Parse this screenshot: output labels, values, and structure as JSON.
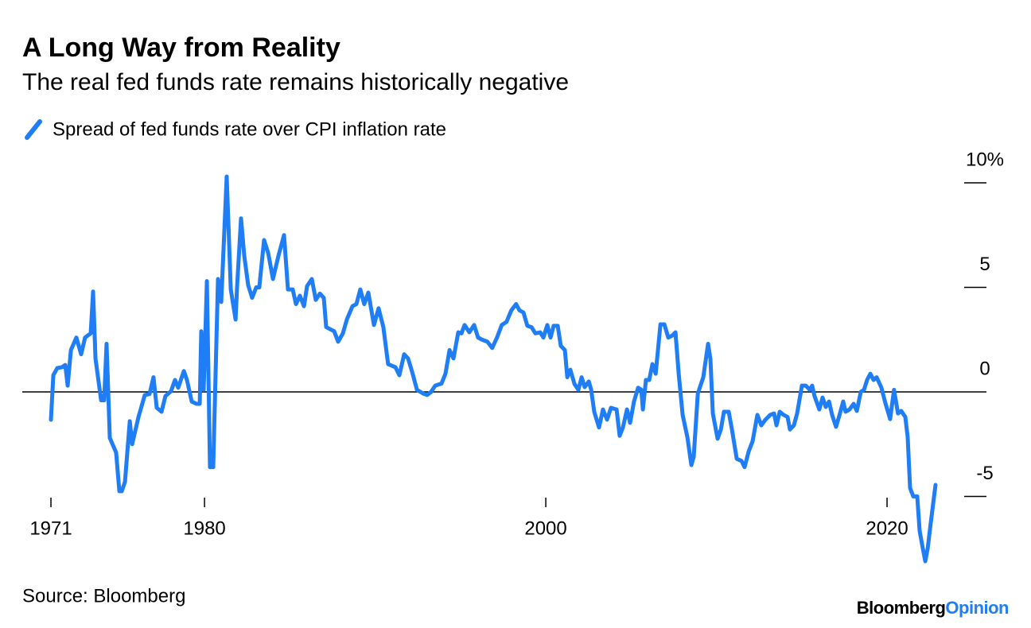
{
  "chart_data": {
    "type": "line",
    "title": "A Long Way from Reality",
    "subtitle": "The real fed funds rate remains historically negative",
    "source": "Source: Bloomberg",
    "logo": {
      "brand": "Bloomberg",
      "product": "Opinion"
    },
    "xlim": [
      1969.32,
      2024.52
    ],
    "xticks": [
      1971,
      1980,
      2000,
      2020
    ],
    "ylim": [
      -8.5,
      10.5
    ],
    "yticks": [
      {
        "value": 10,
        "label": "10%"
      },
      5,
      0,
      -5
    ],
    "grid": false,
    "x": [
      1971.0,
      1971.14,
      1971.37,
      1971.65,
      1971.84,
      1971.98,
      1972.17,
      1972.49,
      1972.77,
      1973.0,
      1973.33,
      1973.47,
      1973.61,
      1973.94,
      1974.12,
      1974.26,
      1974.45,
      1974.82,
      1975.01,
      1975.15,
      1975.34,
      1975.62,
      1975.76,
      1976.13,
      1976.5,
      1976.78,
      1977.01,
      1977.2,
      1977.48,
      1977.71,
      1978.04,
      1978.27,
      1978.46,
      1978.79,
      1978.97,
      1979.25,
      1979.53,
      1979.72,
      1979.81,
      1979.95,
      1980.14,
      1980.32,
      1980.51,
      1980.79,
      1980.98,
      1981.3,
      1981.54,
      1981.82,
      1981.91,
      1982.14,
      1982.33,
      1982.56,
      1982.79,
      1983.03,
      1983.21,
      1983.49,
      1983.73,
      1984.01,
      1984.33,
      1984.66,
      1984.89,
      1985.17,
      1985.36,
      1985.59,
      1985.83,
      1986.01,
      1986.29,
      1986.52,
      1986.76,
      1986.99,
      1987.13,
      1987.6,
      1987.83,
      1988.11,
      1988.34,
      1988.67,
      1988.9,
      1989.13,
      1989.36,
      1989.6,
      1989.93,
      1990.2,
      1990.48,
      1990.76,
      1991.19,
      1991.42,
      1991.7,
      1991.93,
      1992.17,
      1992.45,
      1992.82,
      1993.05,
      1993.28,
      1993.52,
      1993.89,
      1994.12,
      1994.36,
      1994.59,
      1994.87,
      1995.06,
      1995.24,
      1995.52,
      1995.8,
      1996.03,
      1996.26,
      1996.58,
      1996.86,
      1997.14,
      1997.42,
      1997.7,
      1997.98,
      1998.26,
      1998.46,
      1998.69,
      1998.92,
      1999.16,
      1999.39,
      1999.67,
      1999.86,
      2000.09,
      2000.28,
      2000.46,
      2000.7,
      2000.88,
      2001.12,
      2001.26,
      2001.44,
      2001.68,
      2001.91,
      2002.1,
      2002.28,
      2002.52,
      2002.66,
      2002.84,
      2003.12,
      2003.35,
      2003.59,
      2003.82,
      2004.15,
      2004.33,
      2004.52,
      2004.76,
      2004.94,
      2005.17,
      2005.41,
      2005.6,
      2005.69,
      2005.87,
      2006.06,
      2006.25,
      2006.44,
      2006.72,
      2006.95,
      2007.18,
      2007.42,
      2007.6,
      2007.79,
      2008.02,
      2008.3,
      2008.53,
      2008.67,
      2008.91,
      2009.23,
      2009.51,
      2009.65,
      2009.79,
      2010.07,
      2010.26,
      2010.44,
      2010.72,
      2010.91,
      2011.19,
      2011.47,
      2011.65,
      2011.89,
      2012.12,
      2012.4,
      2012.63,
      2012.87,
      2013.15,
      2013.38,
      2013.52,
      2013.71,
      2013.94,
      2014.17,
      2014.31,
      2014.54,
      2014.73,
      2015.01,
      2015.24,
      2015.47,
      2015.61,
      2015.75,
      2016.03,
      2016.22,
      2016.41,
      2016.6,
      2016.78,
      2017.01,
      2017.24,
      2017.43,
      2017.57,
      2017.8,
      2018.04,
      2018.23,
      2018.46,
      2018.65,
      2018.83,
      2019.02,
      2019.21,
      2019.39,
      2019.67,
      2019.9,
      2020.18,
      2020.41,
      2020.64,
      2020.83,
      2021.07,
      2021.21,
      2021.35,
      2021.54,
      2021.77,
      2021.91,
      2022.1,
      2022.24,
      2022.38,
      2022.56,
      2022.84
    ],
    "series": [
      {
        "name": "Spread of fed funds rate over CPI inflation rate",
        "color": "#1f7ef5",
        "values": [
          -1.33,
          0.8,
          1.14,
          1.18,
          1.29,
          0.3,
          2.0,
          2.6,
          1.8,
          2.6,
          2.8,
          4.8,
          1.6,
          -0.4,
          -0.4,
          2.3,
          -2.2,
          -2.9,
          -4.75,
          -4.75,
          -4.3,
          -1.4,
          -2.5,
          -1.2,
          -0.15,
          -0.1,
          0.7,
          -0.76,
          -0.95,
          -0.2,
          0.04,
          0.57,
          0.2,
          1.0,
          0.57,
          -0.46,
          -0.57,
          -0.57,
          2.9,
          0.1,
          5.3,
          -3.6,
          -3.6,
          5.4,
          4.3,
          10.3,
          4.9,
          3.46,
          5.05,
          8.3,
          6.5,
          5.1,
          4.5,
          5.0,
          5.0,
          7.26,
          6.65,
          5.4,
          6.5,
          7.5,
          4.9,
          4.9,
          4.2,
          4.6,
          4.1,
          5.06,
          5.4,
          4.4,
          4.7,
          4.5,
          3.1,
          2.9,
          2.4,
          2.8,
          3.46,
          4.1,
          4.2,
          4.9,
          4.2,
          4.75,
          3.2,
          4.0,
          3.1,
          1.33,
          1.18,
          0.8,
          1.8,
          1.6,
          0.95,
          0.1,
          -0.08,
          -0.15,
          0,
          0.3,
          0.4,
          0.87,
          2.0,
          1.6,
          2.85,
          2.8,
          3.2,
          2.85,
          3.2,
          2.6,
          2.5,
          2.4,
          2.1,
          2.6,
          3.2,
          3.35,
          3.9,
          4.2,
          3.9,
          3.8,
          3.16,
          3.1,
          2.8,
          2.85,
          2.6,
          3.2,
          2.6,
          3.16,
          3.16,
          2.2,
          2.0,
          0.7,
          1.06,
          0.38,
          0.1,
          0.7,
          0.23,
          0.5,
          0.1,
          -0.95,
          -1.7,
          -0.84,
          -1.33,
          -0.76,
          -0.84,
          -2.1,
          -1.7,
          -0.84,
          -1.48,
          -0.46,
          0.2,
          0.1,
          -0.84,
          0.57,
          0.57,
          1.33,
          0.87,
          3.23,
          3.23,
          2.6,
          2.7,
          2.85,
          0.87,
          -1.1,
          -2.17,
          -3.5,
          -3.1,
          -0.08,
          0.7,
          2.3,
          1.56,
          -1.03,
          -2.24,
          -1.8,
          -0.95,
          -0.95,
          -1.8,
          -3.2,
          -3.3,
          -3.6,
          -2.85,
          -2.36,
          -1.1,
          -1.6,
          -1.33,
          -1.1,
          -1.03,
          -1.6,
          -0.95,
          -1.1,
          -1.2,
          -1.8,
          -1.6,
          -1.03,
          0.3,
          0.3,
          0.1,
          0.3,
          -0.2,
          -0.84,
          -0.27,
          -0.72,
          -0.46,
          -1.1,
          -1.67,
          -1.03,
          -0.46,
          -0.95,
          -0.84,
          -0.57,
          -0.91,
          0,
          0.1,
          0.57,
          0.87,
          0.57,
          0.7,
          0.2,
          -0.53,
          -1.3,
          0.1,
          -1.03,
          -0.91,
          -1.2,
          -2.17,
          -4.6,
          -5.0,
          -5.0,
          -6.65,
          -7.5,
          -8.1,
          -7.5,
          -6.27,
          -4.45
        ]
      }
    ]
  }
}
